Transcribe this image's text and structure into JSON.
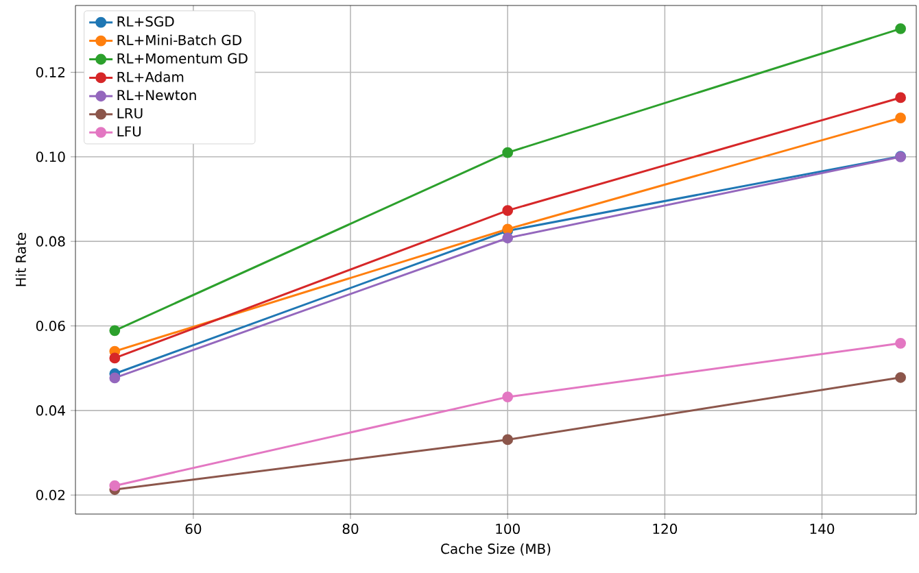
{
  "chart_data": {
    "type": "line",
    "xlabel": "Cache Size (MB)",
    "ylabel": "Hit Rate",
    "x": [
      50,
      100,
      150
    ],
    "series": [
      {
        "name": "RL+SGD",
        "color": "#1f77b4",
        "values": [
          0.0487,
          0.0825,
          0.1001
        ]
      },
      {
        "name": "RL+Mini-Batch GD",
        "color": "#ff7f0e",
        "values": [
          0.054,
          0.0829,
          0.1092
        ]
      },
      {
        "name": "RL+Momentum GD",
        "color": "#2ca02c",
        "values": [
          0.0589,
          0.101,
          0.1303
        ]
      },
      {
        "name": "RL+Adam",
        "color": "#d62728",
        "values": [
          0.0524,
          0.0873,
          0.114
        ]
      },
      {
        "name": "RL+Newton",
        "color": "#9467bd",
        "values": [
          0.0477,
          0.0808,
          0.1
        ]
      },
      {
        "name": "LRU",
        "color": "#8c564b",
        "values": [
          0.0213,
          0.0331,
          0.0478
        ]
      },
      {
        "name": "LFU",
        "color": "#e377c2",
        "values": [
          0.0222,
          0.0432,
          0.0559
        ]
      }
    ],
    "xlim": [
      45,
      152
    ],
    "ylim": [
      0.0155,
      0.1358
    ],
    "xticks": [
      60,
      80,
      100,
      120,
      140
    ],
    "yticks": [
      {
        "value": 0.02,
        "label": "0.02"
      },
      {
        "value": 0.04,
        "label": "0.04"
      },
      {
        "value": 0.06,
        "label": "0.06"
      },
      {
        "value": 0.08,
        "label": "0.08"
      },
      {
        "value": 0.1,
        "label": "0.10"
      },
      {
        "value": 0.12,
        "label": "0.12"
      }
    ],
    "grid": true,
    "legend": "top left",
    "marker": "circle",
    "line_style": "solid"
  }
}
